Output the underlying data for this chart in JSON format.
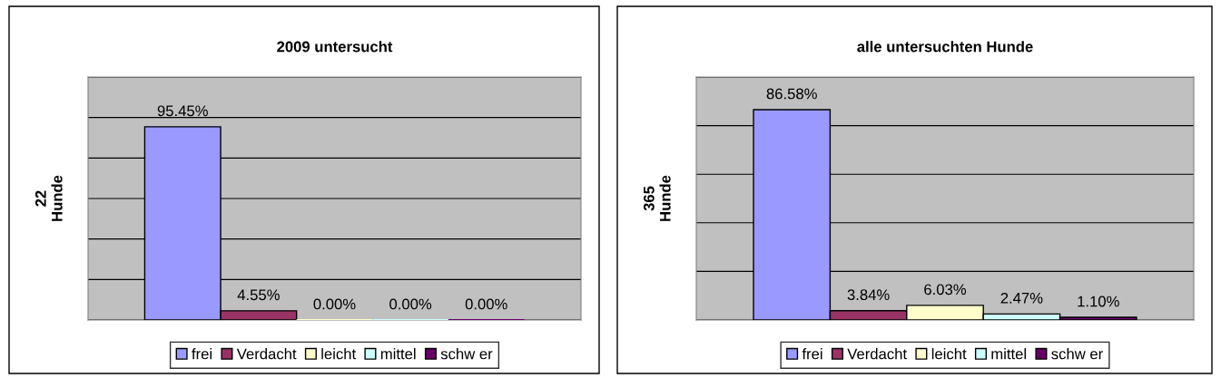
{
  "chart_data": [
    {
      "type": "bar",
      "title": "2009 untersucht",
      "ylabel": "22\nHunde",
      "categories": [
        null
      ],
      "ylim": [
        0,
        120
      ],
      "yticks": [
        {
          "value": 0,
          "label": null
        },
        {
          "value": 20,
          "label": null
        },
        {
          "value": 40,
          "label": null
        },
        {
          "value": 60,
          "label": null
        },
        {
          "value": 80,
          "label": null
        },
        {
          "value": 100,
          "label": null
        },
        {
          "value": 120,
          "label": null
        }
      ],
      "tick_labels": false,
      "grid": "y",
      "legend": "bottom",
      "series": [
        {
          "name": "frei",
          "color": "#9999ff",
          "values": [
            95.45
          ],
          "value_labels": [
            "95.45%"
          ]
        },
        {
          "name": "Verdacht",
          "color": "#993366",
          "values": [
            4.55
          ],
          "value_labels": [
            "4.55%"
          ]
        },
        {
          "name": "leicht",
          "color": "#ffffcc",
          "values": [
            0.0
          ],
          "value_labels": [
            "0.00%"
          ]
        },
        {
          "name": "mittel",
          "color": "#ccffff",
          "values": [
            0.0
          ],
          "value_labels": [
            "0.00%"
          ]
        },
        {
          "name": "schw er",
          "color": "#660066",
          "values": [
            0.0
          ],
          "value_labels": [
            "0.00%"
          ]
        }
      ]
    },
    {
      "type": "bar",
      "title": "alle untersuchten Hunde",
      "ylabel": "365\nHunde",
      "categories": [
        null
      ],
      "ylim": [
        0,
        100
      ],
      "yticks": [
        {
          "value": 0,
          "label": null
        },
        {
          "value": 20,
          "label": null
        },
        {
          "value": 40,
          "label": null
        },
        {
          "value": 60,
          "label": null
        },
        {
          "value": 80,
          "label": null
        },
        {
          "value": 100,
          "label": null
        }
      ],
      "tick_labels": false,
      "grid": "y",
      "legend": "bottom",
      "series": [
        {
          "name": "frei",
          "color": "#9999ff",
          "values": [
            86.58
          ],
          "value_labels": [
            "86.58%"
          ]
        },
        {
          "name": "Verdacht",
          "color": "#993366",
          "values": [
            3.84
          ],
          "value_labels": [
            "3.84%"
          ]
        },
        {
          "name": "leicht",
          "color": "#ffffcc",
          "values": [
            6.03
          ],
          "value_labels": [
            "6.03%"
          ]
        },
        {
          "name": "mittel",
          "color": "#ccffff",
          "values": [
            2.47
          ],
          "value_labels": [
            "2.47%"
          ]
        },
        {
          "name": "schw er",
          "color": "#660066",
          "values": [
            1.1
          ],
          "value_labels": [
            "1.10%"
          ]
        }
      ]
    }
  ]
}
